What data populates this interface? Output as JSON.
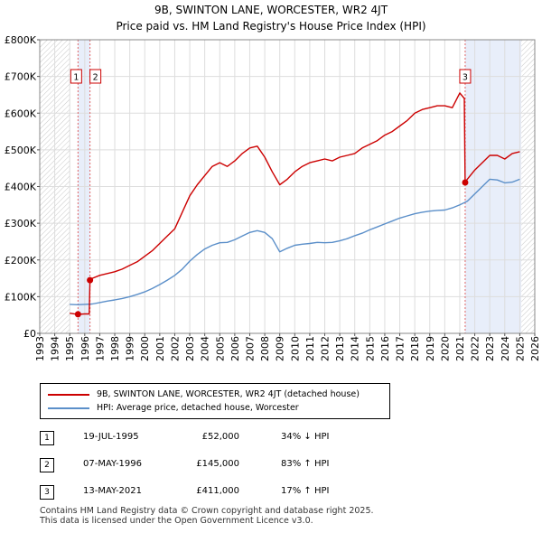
{
  "title_line1": "9B, SWINTON LANE, WORCESTER, WR2 4JT",
  "title_line2": "Price paid vs. HM Land Registry's House Price Index (HPI)",
  "chart_data": {
    "type": "line",
    "xlim": [
      1993,
      2026
    ],
    "ylim": [
      0,
      800000
    ],
    "y_ticks": [
      0,
      100000,
      200000,
      300000,
      400000,
      500000,
      600000,
      700000,
      800000
    ],
    "y_tick_labels": [
      "£0",
      "£100K",
      "£200K",
      "£300K",
      "£400K",
      "£500K",
      "£600K",
      "£700K",
      "£800K"
    ],
    "x_ticks": [
      1993,
      1994,
      1995,
      1996,
      1997,
      1998,
      1999,
      2000,
      2001,
      2002,
      2003,
      2004,
      2005,
      2006,
      2007,
      2008,
      2009,
      2010,
      2011,
      2012,
      2013,
      2014,
      2015,
      2016,
      2017,
      2018,
      2019,
      2020,
      2021,
      2022,
      2023,
      2024,
      2025,
      2026
    ],
    "grid": true,
    "hatched_before": 1995.0,
    "hatched_after": 2025.1,
    "shaded_spans": [
      [
        1995.55,
        1996.35
      ],
      [
        2021.36,
        2025.1
      ]
    ],
    "series": [
      {
        "name": "9B, SWINTON LANE, WORCESTER, WR2 4JT (detached house)",
        "color": "#cc0000",
        "x": [
          1995.0,
          1995.5,
          1995.55,
          1996.0,
          1996.3,
          1996.35,
          1996.5,
          1997.0,
          1997.5,
          1998.0,
          1998.5,
          1999.0,
          1999.5,
          2000.0,
          2000.5,
          2001.0,
          2001.5,
          2002.0,
          2002.5,
          2003.0,
          2003.5,
          2004.0,
          2004.5,
          2005.0,
          2005.5,
          2006.0,
          2006.5,
          2007.0,
          2007.5,
          2008.0,
          2008.5,
          2009.0,
          2009.5,
          2010.0,
          2010.5,
          2011.0,
          2011.5,
          2012.0,
          2012.5,
          2013.0,
          2013.5,
          2014.0,
          2014.5,
          2015.0,
          2015.5,
          2016.0,
          2016.5,
          2017.0,
          2017.5,
          2018.0,
          2018.5,
          2019.0,
          2019.5,
          2020.0,
          2020.5,
          2021.0,
          2021.3,
          2021.36,
          2021.5,
          2022.0,
          2022.5,
          2023.0,
          2023.5,
          2024.0,
          2024.5,
          2025.0
        ],
        "values": [
          55000,
          52000,
          52000,
          53000,
          53000,
          145000,
          150000,
          158000,
          163000,
          168000,
          175000,
          185000,
          195000,
          210000,
          225000,
          245000,
          265000,
          285000,
          330000,
          375000,
          405000,
          430000,
          455000,
          465000,
          455000,
          470000,
          490000,
          505000,
          510000,
          480000,
          440000,
          405000,
          420000,
          440000,
          455000,
          465000,
          470000,
          475000,
          470000,
          480000,
          485000,
          490000,
          505000,
          515000,
          525000,
          540000,
          550000,
          565000,
          580000,
          600000,
          610000,
          615000,
          620000,
          620000,
          615000,
          655000,
          640000,
          411000,
          420000,
          445000,
          465000,
          485000,
          485000,
          475000,
          490000,
          495000
        ]
      },
      {
        "name": "HPI: Average price, detached house, Worcester",
        "color": "#5b8fc9",
        "x": [
          1995.0,
          1995.5,
          1996.0,
          1996.5,
          1997.0,
          1997.5,
          1998.0,
          1998.5,
          1999.0,
          1999.5,
          2000.0,
          2000.5,
          2001.0,
          2001.5,
          2002.0,
          2002.5,
          2003.0,
          2003.5,
          2004.0,
          2004.5,
          2005.0,
          2005.5,
          2006.0,
          2006.5,
          2007.0,
          2007.5,
          2008.0,
          2008.5,
          2009.0,
          2009.5,
          2010.0,
          2010.5,
          2011.0,
          2011.5,
          2012.0,
          2012.5,
          2013.0,
          2013.5,
          2014.0,
          2014.5,
          2015.0,
          2015.5,
          2016.0,
          2016.5,
          2017.0,
          2017.5,
          2018.0,
          2018.5,
          2019.0,
          2019.5,
          2020.0,
          2020.5,
          2021.0,
          2021.5,
          2022.0,
          2022.5,
          2023.0,
          2023.5,
          2024.0,
          2024.5,
          2025.0
        ],
        "values": [
          79000,
          78000,
          79000,
          80000,
          84000,
          88000,
          91000,
          95000,
          100000,
          106000,
          113000,
          122000,
          133000,
          145000,
          158000,
          175000,
          197000,
          215000,
          230000,
          240000,
          247000,
          248000,
          255000,
          265000,
          275000,
          280000,
          275000,
          258000,
          222000,
          232000,
          240000,
          243000,
          245000,
          248000,
          247000,
          248000,
          252000,
          258000,
          266000,
          273000,
          282000,
          290000,
          298000,
          306000,
          314000,
          320000,
          326000,
          330000,
          333000,
          335000,
          336000,
          342000,
          350000,
          360000,
          380000,
          400000,
          420000,
          418000,
          410000,
          412000,
          420000
        ]
      }
    ],
    "markers": [
      {
        "label": "1",
        "x": 1995.55,
        "value": 52000
      },
      {
        "label": "2",
        "x": 1996.35,
        "value": 145000
      },
      {
        "label": "3",
        "x": 2021.36,
        "value": 411000
      }
    ]
  },
  "legend": [
    {
      "label": "9B, SWINTON LANE, WORCESTER, WR2 4JT (detached house)",
      "color": "#cc0000"
    },
    {
      "label": "HPI: Average price, detached house, Worcester",
      "color": "#5b8fc9"
    }
  ],
  "transactions": [
    {
      "num": "1",
      "date": "19-JUL-1995",
      "price": "£52,000",
      "hpi": "34% ↓ HPI"
    },
    {
      "num": "2",
      "date": "07-MAY-1996",
      "price": "£145,000",
      "hpi": "83% ↑ HPI"
    },
    {
      "num": "3",
      "date": "13-MAY-2021",
      "price": "£411,000",
      "hpi": "17% ↑ HPI"
    }
  ],
  "footer_line1": "Contains HM Land Registry data © Crown copyright and database right 2025.",
  "footer_line2": "This data is licensed under the Open Government Licence v3.0."
}
